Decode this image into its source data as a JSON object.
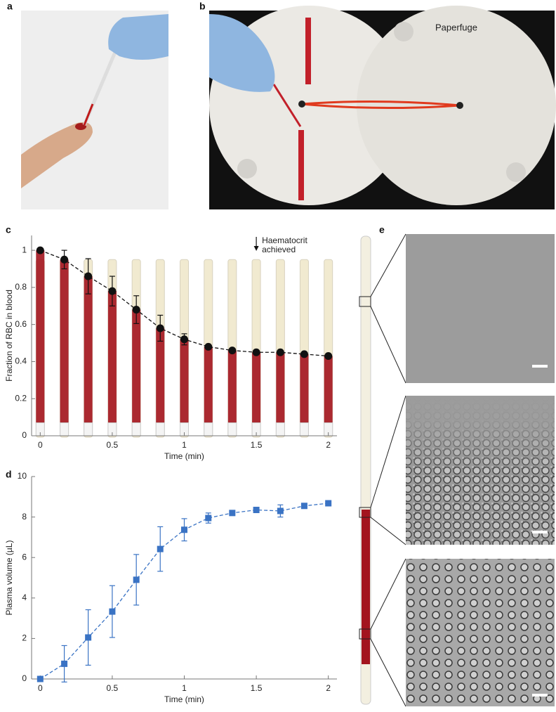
{
  "panel_labels": [
    "a",
    "b",
    "c",
    "d",
    "e"
  ],
  "photo_label": "Paperfuge",
  "chart_data": [
    {
      "type": "line",
      "xlabel": "Time (min)",
      "ylabel": "Fraction of RBC in blood",
      "x": [
        0,
        0.167,
        0.333,
        0.5,
        0.667,
        0.833,
        1,
        1.167,
        1.333,
        1.5,
        1.667,
        1.833,
        2
      ],
      "series": [
        {
          "color": "#111111",
          "marker": "circle",
          "line_style": "dashed",
          "values": [
            1.0,
            0.95,
            0.86,
            0.78,
            0.68,
            0.58,
            0.52,
            0.48,
            0.46,
            0.45,
            0.45,
            0.44,
            0.43
          ],
          "errors": [
            0,
            0.05,
            0.095,
            0.08,
            0.075,
            0.07,
            0.03,
            0.01,
            0.005,
            0.01,
            0.01,
            0.005,
            0.005
          ]
        }
      ],
      "xlim": [
        -0.06,
        2.06
      ],
      "xticks": [
        0,
        0.5,
        1,
        1.5,
        2
      ],
      "ylim": [
        0,
        1.08
      ],
      "yticks": [
        0,
        0.2,
        0.4,
        0.6,
        0.8,
        1
      ],
      "annotation": {
        "text": [
          "Haematocrit",
          "achieved"
        ],
        "x": 1.5
      }
    },
    {
      "type": "line",
      "xlabel": "Time (min)",
      "ylabel": "Plasma volume (µL)",
      "x": [
        0,
        0.167,
        0.333,
        0.5,
        0.667,
        0.833,
        1,
        1.167,
        1.333,
        1.5,
        1.667,
        1.833,
        2
      ],
      "series": [
        {
          "color": "#3a73c4",
          "marker": "square",
          "line_style": "dashed",
          "values": [
            0,
            0.75,
            2.05,
            3.33,
            4.9,
            6.42,
            7.37,
            7.95,
            8.2,
            8.35,
            8.3,
            8.55,
            8.68
          ],
          "errors": [
            0,
            0.9,
            1.37,
            1.28,
            1.25,
            1.1,
            0.55,
            0.25,
            0.05,
            0.1,
            0.3,
            0.1,
            0.1
          ]
        }
      ],
      "xlim": [
        -0.06,
        2.06
      ],
      "xticks": [
        0,
        0.5,
        1,
        1.5,
        2
      ],
      "ylim": [
        0,
        10
      ],
      "yticks": [
        0,
        2,
        4,
        6,
        8,
        10
      ]
    }
  ]
}
